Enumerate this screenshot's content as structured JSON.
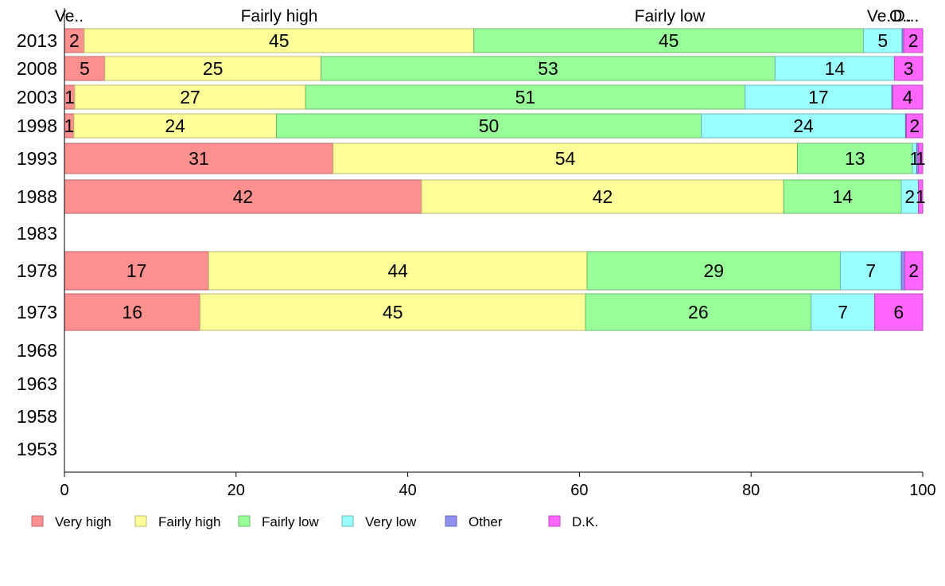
{
  "chart_data": {
    "type": "bar",
    "orientation": "horizontal",
    "stacked": true,
    "categories": [
      "2013",
      "2008",
      "2003",
      "1998",
      "1993",
      "1988",
      "1983",
      "1978",
      "1973",
      "1968",
      "1963",
      "1958",
      "1953"
    ],
    "series": [
      {
        "name": "Very high",
        "color": "#ff9090",
        "values": [
          2.3,
          4.7,
          1.2,
          1.1,
          31.3,
          41.6,
          null,
          16.8,
          15.8,
          null,
          null,
          null,
          null
        ]
      },
      {
        "name": "Fairly high",
        "color": "#ffff99",
        "values": [
          45.4,
          25.2,
          26.9,
          23.6,
          54.1,
          42.2,
          null,
          44.1,
          44.9,
          null,
          null,
          null,
          null
        ]
      },
      {
        "name": "Fairly low",
        "color": "#99ff99",
        "values": [
          45.4,
          52.9,
          51.2,
          49.5,
          13.4,
          13.7,
          null,
          29.5,
          26.3,
          null,
          null,
          null,
          null
        ]
      },
      {
        "name": "Very low",
        "color": "#99ffff",
        "values": [
          4.5,
          13.9,
          17.1,
          23.8,
          0.5,
          2.0,
          null,
          7.1,
          7.4,
          null,
          null,
          null,
          null
        ]
      },
      {
        "name": "Other",
        "color": "#9090f0",
        "values": [
          0.2,
          0.0,
          0.1,
          0.1,
          0.2,
          0.0,
          null,
          0.4,
          0.0,
          null,
          null,
          null,
          null
        ]
      },
      {
        "name": "D.K.",
        "color": "#ff66ff",
        "values": [
          2.2,
          3.3,
          3.5,
          1.9,
          0.5,
          0.5,
          null,
          2.1,
          5.6,
          null,
          null,
          null,
          null
        ]
      }
    ],
    "data_labels": [
      [
        "2",
        "45",
        "45",
        "5",
        "",
        "2"
      ],
      [
        "5",
        "25",
        "53",
        "14",
        "",
        "3"
      ],
      [
        "1",
        "27",
        "51",
        "17",
        "",
        "4"
      ],
      [
        "1",
        "24",
        "50",
        "24",
        "",
        "2"
      ],
      [
        "31",
        "54",
        "13",
        "1",
        "",
        "1"
      ],
      [
        "42",
        "42",
        "14",
        "2",
        "",
        "1"
      ],
      [],
      [
        "17",
        "44",
        "29",
        "7",
        "",
        "2"
      ],
      [
        "16",
        "45",
        "26",
        "7",
        "",
        "6"
      ],
      [],
      [],
      [],
      []
    ],
    "top_labels": [
      "Ve..",
      "Fairly high",
      "Fairly low",
      "Ve..",
      "O..",
      "D..."
    ],
    "xlim": [
      0,
      100
    ],
    "xticks": [
      0,
      20,
      40,
      60,
      80,
      100
    ],
    "xlabel": "",
    "ylabel": "",
    "grid": false,
    "legend_position": "bottom"
  }
}
